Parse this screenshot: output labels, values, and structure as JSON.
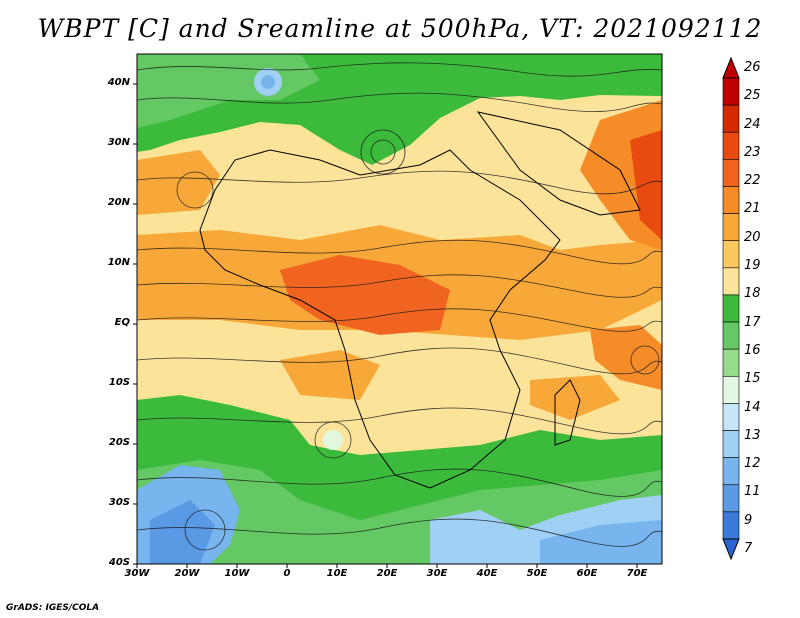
{
  "title": "WBPT [C] and Sreamline at 500hPa, VT: 2021092112",
  "credit": "GrADS: IGES/COLA",
  "map": {
    "lon_range": [
      -30,
      75
    ],
    "lat_range": [
      -40,
      45
    ],
    "lat_ticks": [
      {
        "value": 40,
        "label": "40N"
      },
      {
        "value": 30,
        "label": "30N"
      },
      {
        "value": 20,
        "label": "20N"
      },
      {
        "value": 10,
        "label": "10N"
      },
      {
        "value": 0,
        "label": "EQ"
      },
      {
        "value": -10,
        "label": "10S"
      },
      {
        "value": -20,
        "label": "20S"
      },
      {
        "value": -30,
        "label": "30S"
      },
      {
        "value": -40,
        "label": "40S"
      }
    ],
    "lon_ticks": [
      {
        "value": -30,
        "label": "30W"
      },
      {
        "value": -20,
        "label": "20W"
      },
      {
        "value": -10,
        "label": "10W"
      },
      {
        "value": 0,
        "label": "0"
      },
      {
        "value": 10,
        "label": "10E"
      },
      {
        "value": 20,
        "label": "20E"
      },
      {
        "value": 30,
        "label": "30E"
      },
      {
        "value": 40,
        "label": "40E"
      },
      {
        "value": 50,
        "label": "50E"
      },
      {
        "value": 60,
        "label": "60E"
      },
      {
        "value": 70,
        "label": "70E"
      }
    ]
  },
  "colorbar": {
    "labels": [
      "26",
      "25",
      "24",
      "23",
      "22",
      "21",
      "20",
      "19",
      "18",
      "17",
      "16",
      "15",
      "14",
      "13",
      "12",
      "11",
      "9",
      "7"
    ],
    "colors": [
      "#c00000",
      "#d42a00",
      "#e84a10",
      "#f06420",
      "#f58c28",
      "#f8a838",
      "#fbc860",
      "#fbe39a",
      "#3cba3c",
      "#64c864",
      "#96dc8c",
      "#e2f8e0",
      "#c6e6f8",
      "#a0d0f4",
      "#78b4ee",
      "#5a9ae4",
      "#3a7ada"
    ]
  }
}
